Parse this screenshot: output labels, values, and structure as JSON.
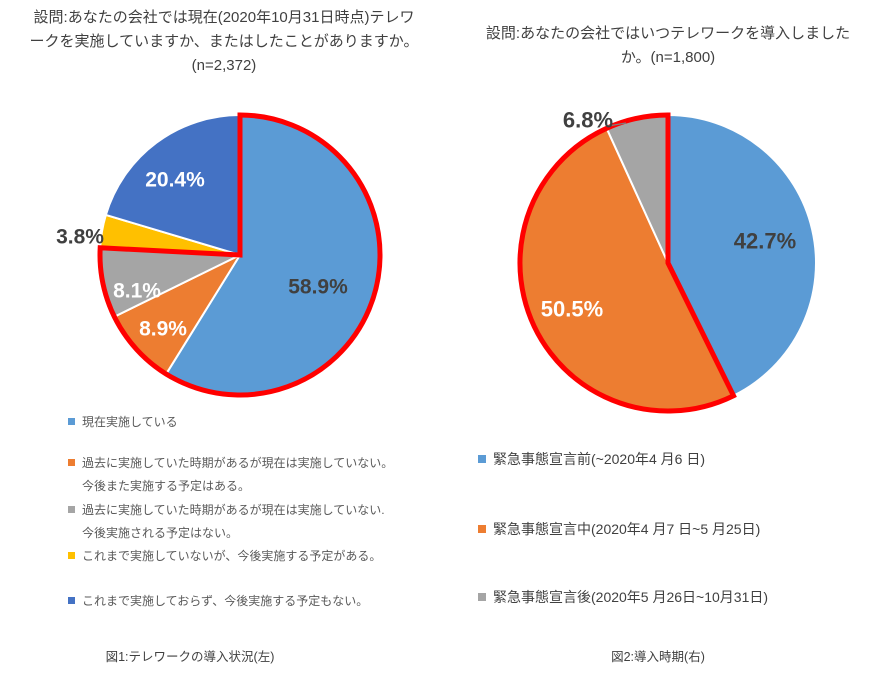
{
  "page": {
    "background": "#ffffff",
    "title_text_color": "#404040",
    "legend_text_color": "#595959",
    "highlight_color": "#ff0000"
  },
  "chart_data": [
    {
      "type": "pie",
      "title": "設問:あなたの会社では現在(2020年10月31日時点)テレワークを実施していますか、またはしたことがありますか。(n=2,372)",
      "title_lines": [
        "設問:あなたの会社では現在(2020年10月31日時点)テレワ",
        "ークを実施していますか、またはしたことがありますか。",
        "(n=2,372)"
      ],
      "sample_size": "n=2,372",
      "caption": "図1:テレワークの導入状況(左)",
      "start_angle_deg": 0,
      "direction": "clockwise",
      "legend_position": "bottom-left",
      "slices": [
        {
          "value": 58.9,
          "color": "#5B9BD5",
          "label_lines": [
            "現在実施している"
          ]
        },
        {
          "value": 8.9,
          "color": "#ED7D31",
          "label_lines": [
            "過去に実施していた時期があるが現在は実施していない。",
            "今後また実施する予定はある。"
          ]
        },
        {
          "value": 8.1,
          "color": "#A5A5A5",
          "label_lines": [
            "過去に実施していた時期があるが現在は実施していない.",
            "今後実施される予定はない。"
          ]
        },
        {
          "value": 3.8,
          "color": "#FFC000",
          "label_lines": [
            "これまで実施していないが、今後実施する予定がある。"
          ]
        },
        {
          "value": 20.4,
          "color": "#4472C4",
          "label_lines": [
            "これまで実施しておらず、今後実施する予定もない。"
          ]
        }
      ],
      "highlight_outline": {
        "color": "#FF0000",
        "slice_indices": [
          0,
          1,
          2
        ],
        "covers_total_pct": 75.9
      }
    },
    {
      "type": "pie",
      "title": "設問:あなたの会社ではいつテレワークを導入しましたか。(n=1,800)",
      "title_lines": [
        "設問:あなたの会社ではいつテレワークを導入しました",
        "か。(n=1,800)"
      ],
      "sample_size": "n=1,800",
      "caption": "図2:導入時期(右)",
      "start_angle_deg": 0,
      "direction": "clockwise",
      "legend_position": "bottom-left",
      "slices": [
        {
          "value": 42.7,
          "color": "#5B9BD5",
          "label_lines": [
            "緊急事態宣言前(~2020年4 月6 日)"
          ]
        },
        {
          "value": 50.5,
          "color": "#ED7D31",
          "label_lines": [
            "緊急事態宣言中(2020年4 月7 日~5 月25日)"
          ]
        },
        {
          "value": 6.8,
          "color": "#A5A5A5",
          "label_lines": [
            "緊急事態宣言後(2020年5 月26日~10月31日)"
          ]
        }
      ],
      "highlight_outline": {
        "color": "#FF0000",
        "slice_indices": [
          1,
          2
        ],
        "covers_total_pct": 57.3
      }
    }
  ]
}
